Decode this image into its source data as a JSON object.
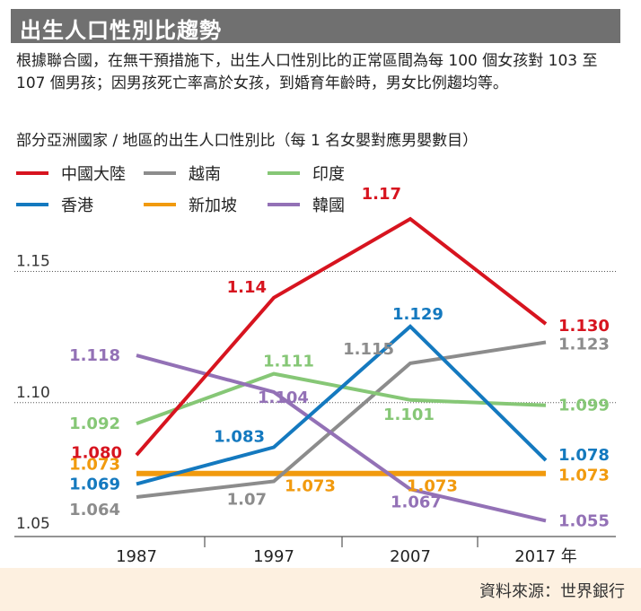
{
  "title": "出生人口性別比趨勢",
  "intro": "根據聯合國，在無干預措施下，出生人口性別比的正常區間為每 100 個女孩對 103 至 107 個男孩；因男孩死亡率高於女孩，到婚育年齡時，男女比例趨均等。",
  "source": "資料來源：世界銀行",
  "colors": {
    "china": "#d7141f",
    "vietnam": "#8c8c8c",
    "india": "#86c776",
    "hongkong": "#1479bf",
    "singapore": "#f19a0e",
    "korea": "#9371b6"
  },
  "chart_data": {
    "type": "line",
    "title": "部分亞洲國家 / 地區的出生人口性別比（每 1 名女嬰對應男嬰數目）",
    "x": [
      "1987",
      "1997",
      "2007",
      "2017 年"
    ],
    "ylim": [
      1.05,
      1.17
    ],
    "yticks": [
      "1.05",
      "1.10",
      "1.15"
    ],
    "grid": "horizontal dotted",
    "legend_placement": "top-left",
    "series": [
      {
        "key": "china",
        "name": "中國大陸",
        "values": [
          1.08,
          1.14,
          1.17,
          1.13
        ],
        "labels": [
          "1.080",
          "1.14",
          "1.17",
          "1.130"
        ]
      },
      {
        "key": "vietnam",
        "name": "越南",
        "values": [
          1.064,
          1.07,
          1.115,
          1.123
        ],
        "labels": [
          "1.064",
          "1.07",
          "1.115",
          "1.123"
        ]
      },
      {
        "key": "india",
        "name": "印度",
        "values": [
          1.092,
          1.111,
          1.101,
          1.099
        ],
        "labels": [
          "1.092",
          "1.111",
          "1.101",
          "1.099"
        ]
      },
      {
        "key": "hongkong",
        "name": "香港",
        "values": [
          1.069,
          1.083,
          1.129,
          1.078
        ],
        "labels": [
          "1.069",
          "1.083",
          "1.129",
          "1.078"
        ]
      },
      {
        "key": "singapore",
        "name": "新加坡",
        "values": [
          1.073,
          1.073,
          1.073,
          1.073
        ],
        "labels": [
          "1.073",
          "1.073",
          "1.073",
          "1.073"
        ]
      },
      {
        "key": "korea",
        "name": "韓國",
        "values": [
          1.118,
          1.104,
          1.067,
          1.055
        ],
        "labels": [
          "1.118",
          "1.104",
          "1.067",
          "1.055"
        ]
      }
    ]
  }
}
